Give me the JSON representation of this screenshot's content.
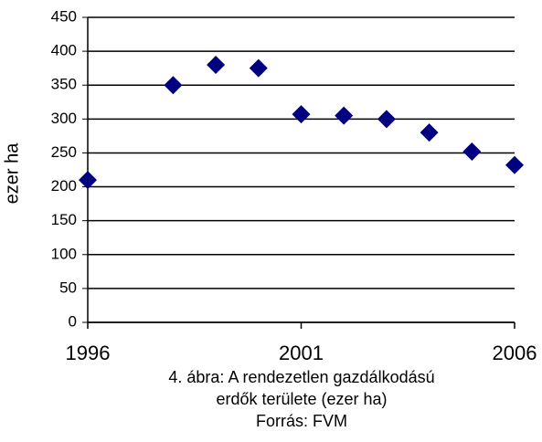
{
  "chart_data": {
    "type": "scatter",
    "y_label": "ezer ha",
    "caption": [
      "4. ábra: A rendezetlen gazdálkodású",
      "erdők területe (ezer ha)",
      "Forrás: FVM"
    ],
    "x": [
      1996,
      1998,
      1999,
      2000,
      2001,
      2002,
      2003,
      2004,
      2005,
      2006
    ],
    "series": [
      {
        "color": "#000080",
        "values": [
          210,
          350,
          380,
          375,
          307,
          305,
          300,
          280,
          252,
          232
        ]
      }
    ],
    "xlim": [
      1996,
      2006
    ],
    "xticks": [
      1996,
      2001,
      2006
    ],
    "ylim": [
      0,
      450
    ],
    "yticks": [
      0,
      50,
      100,
      150,
      200,
      250,
      300,
      350,
      400,
      450
    ],
    "grid": true
  }
}
